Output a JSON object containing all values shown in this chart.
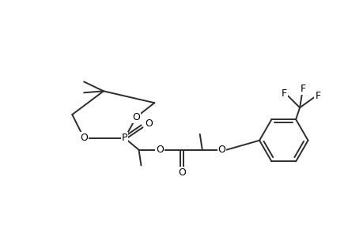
{
  "bg": "#ffffff",
  "lc": "#2d2d2d",
  "tc": "#000000",
  "lw": 1.4,
  "fs": 9.0,
  "fw": 4.6,
  "fh": 3.0,
  "dpi": 100,
  "xlim": [
    0,
    46
  ],
  "ylim": [
    0,
    30
  ]
}
